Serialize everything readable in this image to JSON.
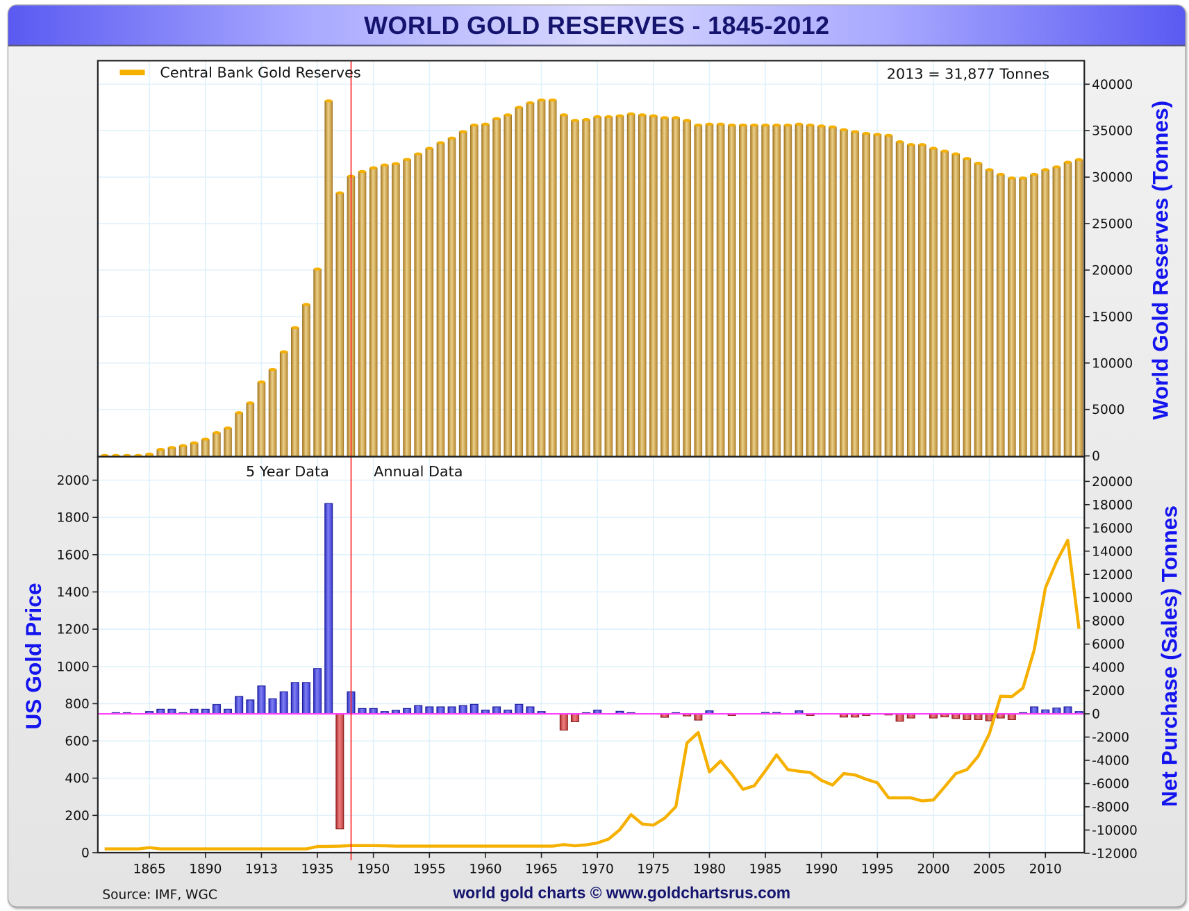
{
  "title": "WORLD GOLD RESERVES - 1845-2012",
  "legend": {
    "label": "Central Bank Gold Reserves",
    "color": "#f5b000"
  },
  "annotation_total": "2013 = 31,877 Tonnes",
  "period_labels": {
    "five_year": "5 Year Data",
    "annual": "Annual Data"
  },
  "source": "Source: IMF, WGC",
  "credit": "world gold charts © www.goldchartsrus.com",
  "colors": {
    "reserves_bar": "#d8b058",
    "purchase_bar": "#5a5ae6",
    "sales_bar": "#d05050",
    "price_line": "#f5b000",
    "zero_line": "#ff40ff",
    "divider_line": "#ff2020",
    "axis_title": "#1414ee",
    "title_text": "#14146e"
  },
  "chart_data": [
    {
      "type": "bar",
      "title": "WORLD GOLD RESERVES - 1845-2012",
      "ylabel": "World Gold Reserves (Tonnes)",
      "ylim": [
        0,
        40000
      ],
      "yticks": [
        0,
        5000,
        10000,
        15000,
        20000,
        25000,
        30000,
        35000,
        40000
      ],
      "y_axis_side": "right",
      "grid": true,
      "legend_position": "top-left",
      "x": [
        1845,
        1850,
        1855,
        1860,
        1865,
        1870,
        1875,
        1880,
        1885,
        1890,
        1895,
        1900,
        1905,
        1909,
        1913,
        1918,
        1922,
        1926,
        1930,
        1935,
        1940,
        1945,
        1948,
        1949,
        1950,
        1951,
        1952,
        1953,
        1954,
        1955,
        1956,
        1957,
        1958,
        1959,
        1960,
        1961,
        1962,
        1963,
        1964,
        1965,
        1966,
        1967,
        1968,
        1969,
        1970,
        1971,
        1972,
        1973,
        1974,
        1975,
        1976,
        1977,
        1978,
        1979,
        1980,
        1981,
        1982,
        1983,
        1984,
        1985,
        1986,
        1987,
        1988,
        1989,
        1990,
        1991,
        1992,
        1993,
        1994,
        1995,
        1996,
        1997,
        1998,
        1999,
        2000,
        2001,
        2002,
        2003,
        2004,
        2005,
        2006,
        2007,
        2008,
        2009,
        2010,
        2011,
        2012,
        2013
      ],
      "series": [
        {
          "name": "Central Bank Gold Reserves",
          "values": [
            50,
            50,
            50,
            50,
            200,
            700,
            900,
            1100,
            1400,
            1800,
            2500,
            3000,
            4650,
            5700,
            7950,
            9300,
            11200,
            13800,
            16300,
            20100,
            38200,
            28300,
            30100,
            30600,
            31000,
            31300,
            31450,
            31900,
            32500,
            33100,
            33700,
            34200,
            34900,
            35600,
            35700,
            36300,
            36700,
            37500,
            38000,
            38300,
            38300,
            36700,
            36100,
            36200,
            36500,
            36500,
            36600,
            36800,
            36700,
            36600,
            36400,
            36400,
            36100,
            35600,
            35700,
            35700,
            35600,
            35600,
            35600,
            35600,
            35600,
            35600,
            35700,
            35600,
            35500,
            35400,
            35100,
            34900,
            34700,
            34600,
            34500,
            33800,
            33500,
            33500,
            33100,
            32800,
            32500,
            32000,
            31500,
            30800,
            30300,
            29900,
            29900,
            30300,
            30800,
            31100,
            31600,
            31877
          ]
        }
      ]
    },
    {
      "type": "bar+line",
      "xticks": [
        "1865",
        "1890",
        "1913",
        "1935",
        "1950",
        "1955",
        "1960",
        "1965",
        "1970",
        "1975",
        "1980",
        "1985",
        "1990",
        "1995",
        "2000",
        "2005",
        "2010"
      ],
      "ylabel_left": "US Gold Price",
      "ylim_left": [
        0,
        2000
      ],
      "yticks_left": [
        0,
        200,
        400,
        600,
        800,
        1000,
        1200,
        1400,
        1600,
        1800,
        2000
      ],
      "ylabel_right": "Net Purchase (Sales) Tonnes",
      "ylim_right": [
        -12000,
        20000
      ],
      "yticks_right": [
        -12000,
        -10000,
        -8000,
        -6000,
        -4000,
        -2000,
        0,
        2000,
        4000,
        6000,
        8000,
        10000,
        12000,
        14000,
        16000,
        18000,
        20000
      ],
      "grid": true,
      "divider_year": 1948,
      "net_purchases": [
        0,
        100,
        100,
        0,
        200,
        400,
        400,
        100,
        400,
        400,
        800,
        400,
        1500,
        1200,
        2400,
        1300,
        1900,
        2700,
        2700,
        3900,
        18100,
        -9900,
        1900,
        460,
        460,
        200,
        300,
        460,
        720,
        600,
        600,
        600,
        720,
        820,
        320,
        600,
        320,
        820,
        600,
        200,
        0,
        -1400,
        -680,
        100,
        320,
        0,
        220,
        100,
        0,
        0,
        -300,
        100,
        -180,
        -540,
        260,
        0,
        -140,
        0,
        0,
        120,
        120,
        0,
        260,
        -140,
        0,
        0,
        -280,
        -280,
        -140,
        0,
        -100,
        -640,
        -360,
        0,
        -360,
        -260,
        -400,
        -500,
        -500,
        -600,
        -360,
        -500,
        100,
        600,
        340,
        500,
        600,
        200
      ],
      "gold_price": [
        20,
        20,
        20,
        20,
        27,
        20,
        20,
        20,
        20,
        20,
        20,
        20,
        20,
        20,
        20,
        20,
        20,
        20,
        20,
        33,
        34,
        35,
        38,
        38,
        38,
        37,
        35,
        35,
        35,
        35,
        35,
        35,
        35,
        35,
        35,
        35,
        35,
        35,
        35,
        35,
        35,
        43,
        37,
        42,
        52,
        73,
        123,
        204,
        154,
        148,
        185,
        247,
        589,
        645,
        434,
        492,
        421,
        340,
        359,
        440,
        525,
        446,
        437,
        430,
        388,
        363,
        425,
        417,
        394,
        375,
        294,
        294,
        294,
        278,
        283,
        353,
        425,
        446,
        518,
        639,
        840,
        838,
        884,
        1088,
        1422,
        1564,
        1678,
        1202
      ]
    }
  ]
}
